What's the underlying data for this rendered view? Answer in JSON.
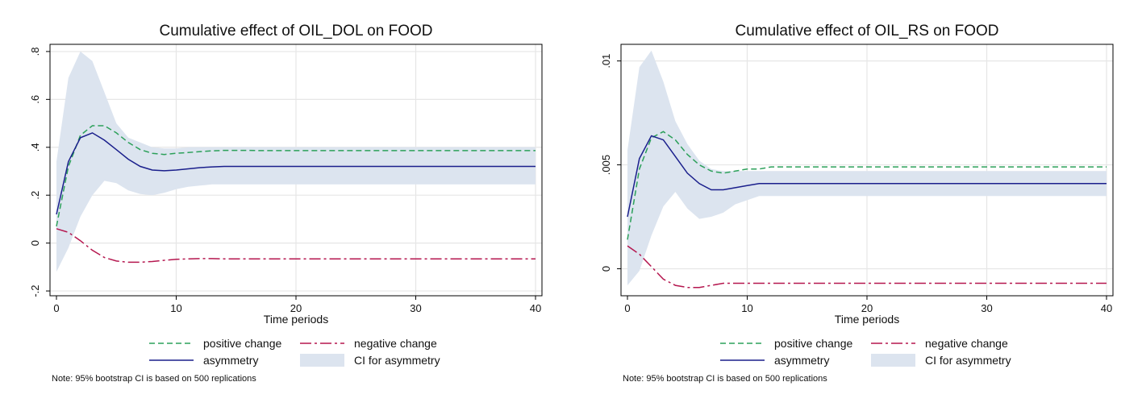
{
  "colors": {
    "positive": "#2ca05a",
    "asymmetry": "#1a1f8c",
    "negative": "#b5174f",
    "ci_fill": "#dce4ef",
    "grid": "#e6e6e6",
    "axis": "#000000"
  },
  "legend": {
    "positive": "positive change",
    "negative": "negative change",
    "asymmetry": "asymmetry",
    "ci": "CI for asymmetry"
  },
  "note": "Note: 95% bootstrap CI is based on 500 replications",
  "chart_data": [
    {
      "type": "line",
      "title": "Cumulative effect of OIL_DOL on FOOD",
      "xlabel": "Time periods",
      "ylabel": "",
      "xlim": [
        0,
        40
      ],
      "ylim": [
        -0.22,
        0.83
      ],
      "xticks": [
        0,
        10,
        20,
        30,
        40
      ],
      "xtick_labels": [
        "0",
        "10",
        "20",
        "30",
        "40"
      ],
      "yticks": [
        -0.2,
        0,
        0.2,
        0.4,
        0.6,
        0.8
      ],
      "ytick_labels": [
        "-.2",
        "0",
        ".2",
        ".4",
        ".6",
        ".8"
      ],
      "grid": true,
      "legend_position": "bottom",
      "x": [
        0,
        1,
        2,
        3,
        4,
        5,
        6,
        7,
        8,
        9,
        10,
        11,
        12,
        13,
        14,
        15,
        16,
        17,
        18,
        19,
        20,
        21,
        22,
        23,
        24,
        25,
        26,
        27,
        28,
        29,
        30,
        31,
        32,
        33,
        34,
        35,
        36,
        37,
        38,
        39,
        40
      ],
      "series": [
        {
          "name": "positive change",
          "key": "positive",
          "values": [
            0.07,
            0.32,
            0.45,
            0.49,
            0.49,
            0.46,
            0.42,
            0.39,
            0.375,
            0.37,
            0.375,
            0.378,
            0.382,
            0.385,
            0.387,
            0.387,
            0.387,
            0.386,
            0.386,
            0.386,
            0.386,
            0.386,
            0.386,
            0.386,
            0.386,
            0.386,
            0.386,
            0.386,
            0.386,
            0.386,
            0.386,
            0.386,
            0.386,
            0.386,
            0.386,
            0.386,
            0.386,
            0.386,
            0.386,
            0.386,
            0.386
          ]
        },
        {
          "name": "asymmetry",
          "key": "asymmetry",
          "values": [
            0.12,
            0.34,
            0.44,
            0.46,
            0.43,
            0.39,
            0.35,
            0.32,
            0.305,
            0.302,
            0.305,
            0.31,
            0.315,
            0.318,
            0.32,
            0.32,
            0.32,
            0.32,
            0.32,
            0.32,
            0.32,
            0.32,
            0.32,
            0.32,
            0.32,
            0.32,
            0.32,
            0.32,
            0.32,
            0.32,
            0.32,
            0.32,
            0.32,
            0.32,
            0.32,
            0.32,
            0.32,
            0.32,
            0.32,
            0.32,
            0.32
          ]
        },
        {
          "name": "negative change",
          "key": "negative",
          "values": [
            0.06,
            0.045,
            0.01,
            -0.03,
            -0.06,
            -0.075,
            -0.08,
            -0.08,
            -0.077,
            -0.072,
            -0.068,
            -0.066,
            -0.065,
            -0.065,
            -0.066,
            -0.066,
            -0.066,
            -0.066,
            -0.066,
            -0.066,
            -0.066,
            -0.066,
            -0.066,
            -0.066,
            -0.066,
            -0.066,
            -0.066,
            -0.066,
            -0.066,
            -0.066,
            -0.066,
            -0.066,
            -0.066,
            -0.066,
            -0.066,
            -0.066,
            -0.066,
            -0.066,
            -0.066,
            -0.066,
            -0.066
          ]
        }
      ],
      "ci": {
        "name": "CI for asymmetry",
        "lower": [
          -0.12,
          -0.02,
          0.11,
          0.2,
          0.26,
          0.25,
          0.22,
          0.205,
          0.2,
          0.21,
          0.225,
          0.235,
          0.24,
          0.245,
          0.245,
          0.245,
          0.245,
          0.245,
          0.245,
          0.245,
          0.245,
          0.245,
          0.245,
          0.245,
          0.245,
          0.245,
          0.245,
          0.245,
          0.245,
          0.245,
          0.245,
          0.245,
          0.245,
          0.245,
          0.245,
          0.245,
          0.245,
          0.245,
          0.245,
          0.245,
          0.245
        ],
        "upper": [
          0.34,
          0.69,
          0.8,
          0.76,
          0.63,
          0.5,
          0.44,
          0.42,
          0.4,
          0.395,
          0.395,
          0.4,
          0.4,
          0.4,
          0.4,
          0.4,
          0.4,
          0.4,
          0.4,
          0.4,
          0.4,
          0.4,
          0.4,
          0.4,
          0.4,
          0.4,
          0.4,
          0.4,
          0.4,
          0.4,
          0.4,
          0.4,
          0.4,
          0.4,
          0.4,
          0.4,
          0.4,
          0.4,
          0.4,
          0.4,
          0.4
        ]
      }
    },
    {
      "type": "line",
      "title": "Cumulative effect of OIL_RS on FOOD",
      "xlabel": "Time periods",
      "ylabel": "",
      "xlim": [
        0,
        40
      ],
      "ylim": [
        -0.0013,
        0.0108
      ],
      "xticks": [
        0,
        10,
        20,
        30,
        40
      ],
      "xtick_labels": [
        "0",
        "10",
        "20",
        "30",
        "40"
      ],
      "yticks": [
        0,
        0.005,
        0.01
      ],
      "ytick_labels": [
        "0",
        ".005",
        ".01"
      ],
      "grid": true,
      "legend_position": "bottom",
      "x": [
        0,
        1,
        2,
        3,
        4,
        5,
        6,
        7,
        8,
        9,
        10,
        11,
        12,
        13,
        14,
        15,
        16,
        17,
        18,
        19,
        20,
        21,
        22,
        23,
        24,
        25,
        26,
        27,
        28,
        29,
        30,
        31,
        32,
        33,
        34,
        35,
        36,
        37,
        38,
        39,
        40
      ],
      "series": [
        {
          "name": "positive change",
          "key": "positive",
          "values": [
            0.0014,
            0.0048,
            0.0063,
            0.0066,
            0.0062,
            0.0055,
            0.005,
            0.0047,
            0.0046,
            0.0047,
            0.0048,
            0.0048,
            0.0049,
            0.0049,
            0.0049,
            0.0049,
            0.0049,
            0.0049,
            0.0049,
            0.0049,
            0.0049,
            0.0049,
            0.0049,
            0.0049,
            0.0049,
            0.0049,
            0.0049,
            0.0049,
            0.0049,
            0.0049,
            0.0049,
            0.0049,
            0.0049,
            0.0049,
            0.0049,
            0.0049,
            0.0049,
            0.0049,
            0.0049,
            0.0049,
            0.0049
          ]
        },
        {
          "name": "asymmetry",
          "key": "asymmetry",
          "values": [
            0.0025,
            0.0053,
            0.0064,
            0.0062,
            0.0054,
            0.0046,
            0.0041,
            0.0038,
            0.0038,
            0.0039,
            0.004,
            0.0041,
            0.0041,
            0.0041,
            0.0041,
            0.0041,
            0.0041,
            0.0041,
            0.0041,
            0.0041,
            0.0041,
            0.0041,
            0.0041,
            0.0041,
            0.0041,
            0.0041,
            0.0041,
            0.0041,
            0.0041,
            0.0041,
            0.0041,
            0.0041,
            0.0041,
            0.0041,
            0.0041,
            0.0041,
            0.0041,
            0.0041,
            0.0041,
            0.0041,
            0.0041
          ]
        },
        {
          "name": "negative change",
          "key": "negative",
          "values": [
            0.0011,
            0.0007,
            0.0001,
            -0.0005,
            -0.0008,
            -0.0009,
            -0.0009,
            -0.0008,
            -0.0007,
            -0.0007,
            -0.0007,
            -0.0007,
            -0.0007,
            -0.0007,
            -0.0007,
            -0.0007,
            -0.0007,
            -0.0007,
            -0.0007,
            -0.0007,
            -0.0007,
            -0.0007,
            -0.0007,
            -0.0007,
            -0.0007,
            -0.0007,
            -0.0007,
            -0.0007,
            -0.0007,
            -0.0007,
            -0.0007,
            -0.0007,
            -0.0007,
            -0.0007,
            -0.0007,
            -0.0007,
            -0.0007,
            -0.0007,
            -0.0007,
            -0.0007,
            -0.0007
          ]
        }
      ],
      "ci": {
        "name": "CI for asymmetry",
        "lower": [
          -0.0008,
          -0.0001,
          0.0016,
          0.003,
          0.0037,
          0.0029,
          0.0024,
          0.0025,
          0.0027,
          0.0031,
          0.0033,
          0.0035,
          0.0035,
          0.0035,
          0.0035,
          0.0035,
          0.0035,
          0.0035,
          0.0035,
          0.0035,
          0.0035,
          0.0035,
          0.0035,
          0.0035,
          0.0035,
          0.0035,
          0.0035,
          0.0035,
          0.0035,
          0.0035,
          0.0035,
          0.0035,
          0.0035,
          0.0035,
          0.0035,
          0.0035,
          0.0035,
          0.0035,
          0.0035,
          0.0035,
          0.0035
        ],
        "upper": [
          0.0057,
          0.0097,
          0.0105,
          0.009,
          0.0071,
          0.006,
          0.0052,
          0.0048,
          0.0047,
          0.0047,
          0.0047,
          0.0047,
          0.0047,
          0.0047,
          0.0047,
          0.0047,
          0.0047,
          0.0047,
          0.0047,
          0.0047,
          0.0047,
          0.0047,
          0.0047,
          0.0047,
          0.0047,
          0.0047,
          0.0047,
          0.0047,
          0.0047,
          0.0047,
          0.0047,
          0.0047,
          0.0047,
          0.0047,
          0.0047,
          0.0047,
          0.0047,
          0.0047,
          0.0047,
          0.0047,
          0.0047
        ]
      }
    }
  ]
}
